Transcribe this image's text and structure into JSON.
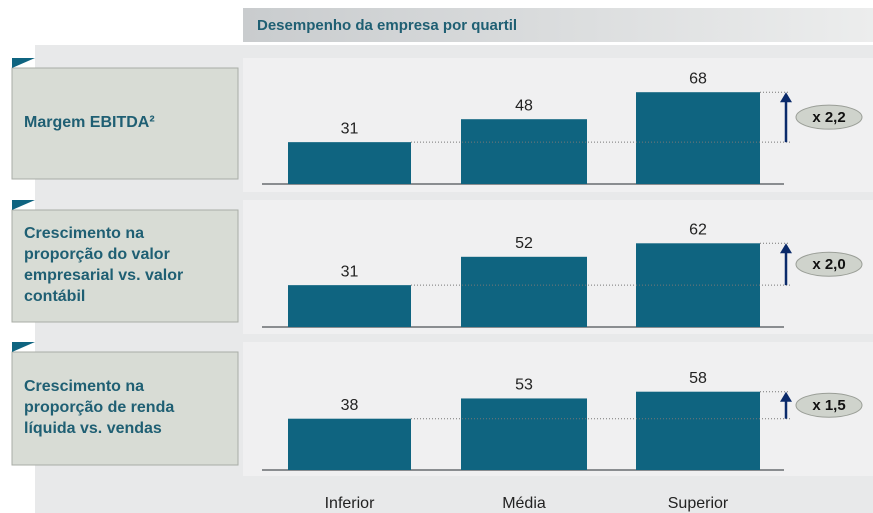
{
  "title": "Desempenho da empresa por quartil",
  "categories": [
    "Inferior",
    "Média",
    "Superior"
  ],
  "chart_data": [
    {
      "type": "bar",
      "title": [
        "Margem EBITDA²"
      ],
      "values": [
        31,
        48,
        68
      ],
      "color": "#0f6480",
      "annotation": "x 2,2"
    },
    {
      "type": "bar",
      "title": [
        "Crescimento na",
        "proporção do valor",
        "empresarial vs. valor",
        "contábil"
      ],
      "values": [
        31,
        52,
        62
      ],
      "color": "#0f6480",
      "annotation": "x 2,0"
    },
    {
      "type": "bar",
      "title": [
        "Crescimento na",
        "proporção de renda",
        "líquida vs. vendas"
      ],
      "values": [
        38,
        53,
        58
      ],
      "color": "#0f6480",
      "annotation": "x 1,5"
    }
  ]
}
